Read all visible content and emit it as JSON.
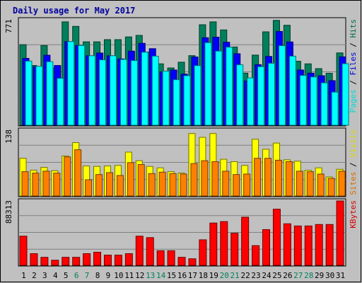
{
  "chart_data": [
    {
      "type": "bar",
      "title": "Daily usage for May 2017",
      "categories": [
        "1",
        "2",
        "3",
        "4",
        "5",
        "6",
        "7",
        "8",
        "9",
        "10",
        "11",
        "12",
        "13",
        "14",
        "15",
        "16",
        "17",
        "18",
        "19",
        "20",
        "21",
        "22",
        "23",
        "24",
        "25",
        "26",
        "27",
        "28",
        "29",
        "30",
        "31"
      ],
      "weekend_days": [
        "6",
        "7",
        "13",
        "14",
        "20",
        "21",
        "27",
        "28"
      ],
      "ymax_label": "771",
      "ylim": [
        0,
        771
      ],
      "series": [
        {
          "name": "Hits",
          "color": "#00805c",
          "values": [
            589,
            437,
            583,
            418,
            756,
            723,
            610,
            610,
            626,
            626,
            646,
            657,
            535,
            449,
            419,
            461,
            509,
            735,
            756,
            697,
            572,
            381,
            513,
            683,
            767,
            731,
            468,
            449,
            414,
            380,
            529
          ]
        },
        {
          "name": "Files",
          "color": "#0000ff",
          "values": [
            489,
            428,
            512,
            437,
            612,
            583,
            508,
            528,
            508,
            485,
            542,
            599,
            560,
            390,
            404,
            374,
            499,
            640,
            644,
            607,
            523,
            324,
            443,
            503,
            686,
            609,
            404,
            381,
            362,
            326,
            500
          ]
        },
        {
          "name": "Pages",
          "color": "#00ffff",
          "values": [
            469,
            431,
            465,
            343,
            612,
            583,
            508,
            478,
            508,
            481,
            473,
            534,
            505,
            396,
            333,
            362,
            436,
            604,
            542,
            571,
            442,
            346,
            428,
            453,
            582,
            505,
            364,
            353,
            310,
            242,
            450
          ]
        }
      ]
    },
    {
      "type": "bar",
      "ymax_label": "138",
      "ylim": [
        0,
        138
      ],
      "series": [
        {
          "name": "Visits",
          "color": "#ffff00",
          "values": [
            79,
            54,
            60,
            53,
            84,
            112,
            63,
            62,
            63,
            64,
            92,
            74,
            62,
            59,
            51,
            48,
            131,
            123,
            131,
            77,
            72,
            64,
            119,
            98,
            111,
            76,
            73,
            54,
            59,
            40,
            56
          ]
        },
        {
          "name": "Sites",
          "color": "#ff8000",
          "values": [
            51,
            48,
            52,
            48,
            82,
            97,
            34,
            45,
            49,
            43,
            70,
            66,
            47,
            50,
            47,
            46,
            68,
            74,
            72,
            52,
            45,
            46,
            79,
            79,
            75,
            72,
            52,
            51,
            46,
            37,
            52
          ]
        }
      ]
    },
    {
      "type": "bar",
      "ymax_label": "88313",
      "ylim": [
        0,
        88313
      ],
      "series": [
        {
          "name": "KBytes",
          "color": "#ff0000",
          "values": [
            40000,
            16000,
            11000,
            7000,
            11000,
            11000,
            16000,
            18000,
            14000,
            14000,
            16000,
            40000,
            38000,
            20000,
            20000,
            11000,
            9000,
            35000,
            58000,
            60000,
            44000,
            66000,
            27000,
            49000,
            77000,
            57000,
            54000,
            54000,
            56000,
            56000,
            88313
          ]
        }
      ]
    }
  ]
}
